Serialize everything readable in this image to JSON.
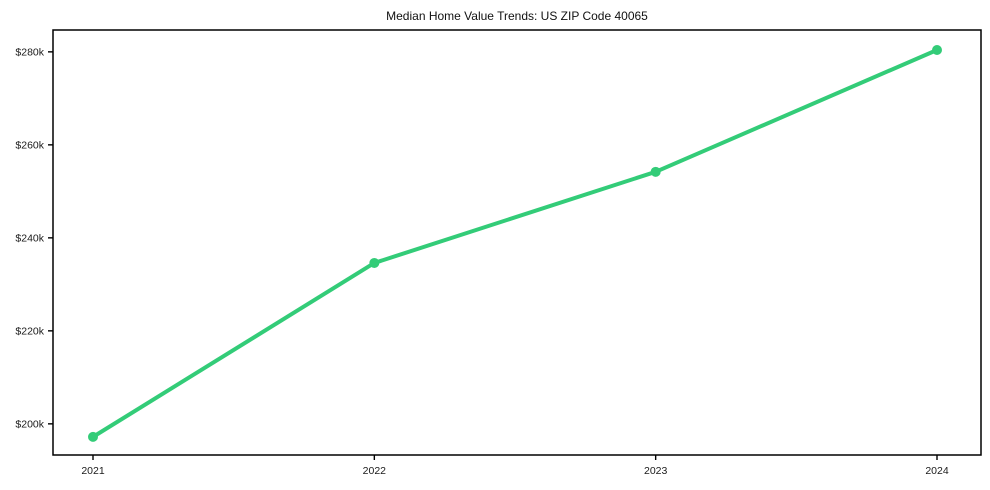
{
  "page": {
    "background": "#ffffff"
  },
  "chart_data": {
    "type": "line",
    "title": "Median Home Value Trends: US ZIP Code 40065",
    "categories": [
      "2021",
      "2022",
      "2023",
      "2024"
    ],
    "values": [
      197200,
      234600,
      254200,
      280400
    ],
    "xlabel": "",
    "ylabel": "",
    "ylim": [
      193300,
      284700
    ],
    "yticks": [
      {
        "value": 200000,
        "label": "$200k"
      },
      {
        "value": 220000,
        "label": "$220k"
      },
      {
        "value": 240000,
        "label": "$240k"
      },
      {
        "value": 260000,
        "label": "$260k"
      },
      {
        "value": 280000,
        "label": "$280k"
      }
    ],
    "grid": false,
    "legend_position": "none",
    "line_color": "#33cc78",
    "marker_color": "#33cc78",
    "marker_shape": "circle",
    "axis_color": "#000000",
    "tick_label_color": "#1a1a1a",
    "title_color": "#111111"
  }
}
